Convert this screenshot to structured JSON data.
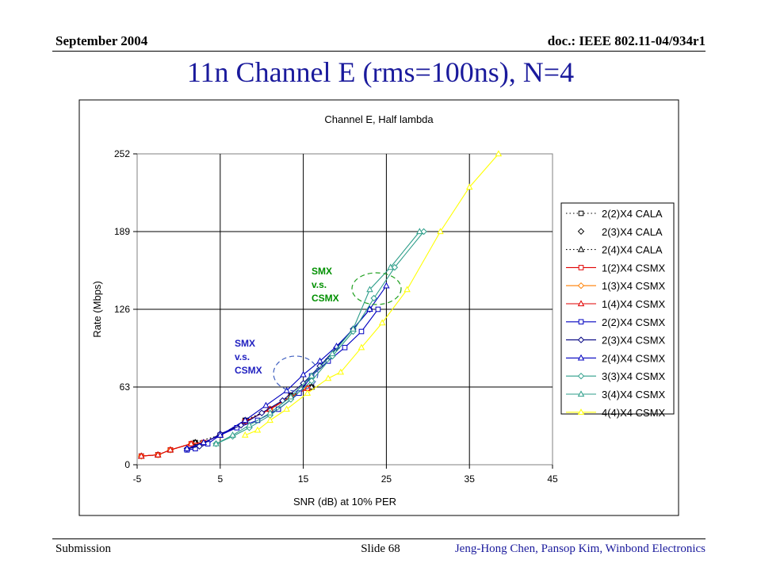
{
  "slide": {
    "header_left": "September 2004",
    "header_right": "doc.: IEEE 802.11-04/934r1",
    "title": "11n Channel E (rms=100ns), N=4",
    "footer_left": "Submission",
    "footer_center": "Slide 68",
    "footer_right": "Jeng-Hong Chen, Pansop Kim, Winbond Electronics"
  },
  "colors": {
    "title": "#1a1a9c",
    "footer_right": "#1a1a9c",
    "annotation_blue": "#2020c0",
    "annotation_green": "#009000"
  },
  "chart_data": {
    "type": "line",
    "title": "Channel E, Half lambda",
    "xlabel": "SNR (dB) at 10% PER",
    "ylabel": "Rate (Mbps)",
    "xlim": [
      -5,
      45
    ],
    "ylim": [
      0,
      252
    ],
    "xticks": [
      -5,
      5,
      15,
      25,
      35,
      45
    ],
    "yticks": [
      0,
      63,
      126,
      189,
      252
    ],
    "grid": "on",
    "legend_position": "right",
    "annotations": [
      {
        "lines": [
          "SMX",
          "v.s.",
          "CSMX"
        ],
        "color": "#2020c0"
      },
      {
        "lines": [
          "SMX",
          "v.s.",
          "CSMX"
        ],
        "color": "#009000"
      }
    ],
    "series": [
      {
        "name": "2(2)X4 CALA",
        "color": "#000000",
        "dash": "dotted",
        "marker": "square",
        "x": [
          -4.5,
          -2.5,
          -1,
          2,
          5,
          8,
          11,
          13.5,
          16
        ],
        "y": [
          7,
          8,
          12,
          18,
          24,
          36,
          45,
          56,
          63
        ]
      },
      {
        "name": "2(3)X4 CALA",
        "color": "#000000",
        "dash": "none",
        "marker": "diamond",
        "x": [
          -4.5,
          -2.5,
          -1,
          2,
          5,
          8,
          11,
          13.5,
          16
        ],
        "y": [
          7,
          8,
          12,
          18,
          24,
          36,
          45,
          56,
          63
        ]
      },
      {
        "name": "2(4)X4 CALA",
        "color": "#000000",
        "dash": "dotted",
        "marker": "triangle",
        "x": [
          -4.5,
          -2.5,
          -1,
          2,
          5,
          8,
          11,
          13.5,
          16
        ],
        "y": [
          7,
          8,
          12,
          18,
          24,
          36,
          45,
          56,
          63
        ]
      },
      {
        "name": "1(2)X4 CSMX",
        "color": "#e00000",
        "dash": "solid",
        "marker": "square",
        "x": [
          -4.5,
          -2.5,
          -1,
          1.5,
          3,
          5,
          8,
          11,
          13.5,
          15.5
        ],
        "y": [
          7,
          8,
          12,
          17,
          18,
          24,
          35,
          45,
          55,
          62
        ]
      },
      {
        "name": "1(3)X4 CSMX",
        "color": "#ff7f00",
        "dash": "solid",
        "marker": "diamond",
        "x": [
          -4.5,
          -2.5,
          -1,
          1.5,
          3,
          5,
          8,
          11,
          13.5,
          15.5
        ],
        "y": [
          7,
          8,
          12,
          17,
          18,
          24,
          35,
          45,
          55,
          62
        ]
      },
      {
        "name": "1(4)X4 CSMX",
        "color": "#e00000",
        "dash": "solid",
        "marker": "triangle",
        "x": [
          -4.5,
          -2.5,
          -1,
          1.5,
          3,
          5,
          8,
          11,
          13.5,
          15.5
        ],
        "y": [
          7,
          8,
          12,
          17,
          18,
          24,
          35,
          45,
          55,
          62
        ]
      },
      {
        "name": "2(2)X4 CSMX",
        "color": "#0000c0",
        "dash": "solid",
        "marker": "square",
        "x": [
          1,
          2,
          3.5,
          5,
          7,
          9.5,
          12,
          14.5,
          16,
          18,
          20,
          22,
          24
        ],
        "y": [
          12,
          13,
          17,
          24,
          30,
          36,
          45,
          58,
          72,
          84,
          95,
          108,
          126
        ]
      },
      {
        "name": "2(3)X4 CSMX",
        "color": "#000080",
        "dash": "solid",
        "marker": "diamond",
        "x": [
          1,
          2.5,
          5,
          7.5,
          10,
          12.5,
          15,
          17,
          19,
          21,
          23
        ],
        "y": [
          13,
          15,
          25,
          32,
          42,
          52,
          66,
          80,
          95,
          110,
          126
        ]
      },
      {
        "name": "2(4)X4 CSMX",
        "color": "#0000c0",
        "dash": "solid",
        "marker": "triangle",
        "x": [
          1,
          3,
          5,
          8,
          10.5,
          13,
          15,
          17,
          19,
          21,
          23,
          25
        ],
        "y": [
          13,
          18,
          24,
          36,
          48,
          60,
          73,
          84,
          96,
          110,
          126,
          145
        ]
      },
      {
        "name": "3(3)X4 CSMX",
        "color": "#2e9e8a",
        "dash": "solid",
        "marker": "diamond",
        "x": [
          4.5,
          6.5,
          8.5,
          11,
          13.5,
          16,
          18.5,
          21,
          23.5,
          26,
          29.5
        ],
        "y": [
          17,
          23,
          30,
          40,
          53,
          68,
          88,
          108,
          135,
          160,
          189
        ]
      },
      {
        "name": "3(4)X4 CSMX",
        "color": "#2e9e8a",
        "dash": "solid",
        "marker": "triangle",
        "x": [
          4.5,
          6.5,
          8.5,
          11,
          13.5,
          16,
          18.5,
          21,
          23,
          25.5,
          29
        ],
        "y": [
          17,
          24,
          32,
          42,
          55,
          72,
          90,
          110,
          142,
          160,
          189
        ]
      },
      {
        "name": "4(4)X4 CSMX",
        "color": "#ffff00",
        "dash": "solid",
        "marker": "triangle",
        "x": [
          8,
          9.5,
          11,
          13,
          15.5,
          18,
          19.5,
          22,
          24.5,
          27.5,
          31.5,
          35,
          38.5
        ],
        "y": [
          24,
          28,
          36,
          45,
          58,
          70,
          75,
          95,
          115,
          142,
          189,
          225,
          252
        ]
      }
    ]
  }
}
